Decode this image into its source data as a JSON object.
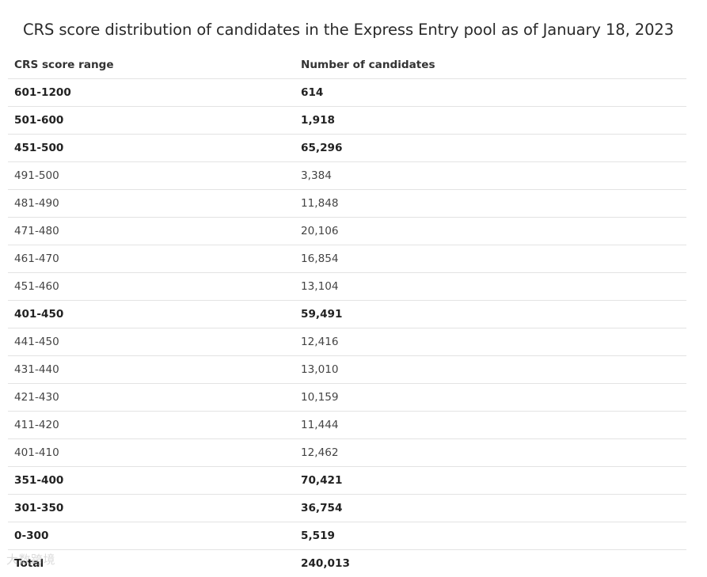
{
  "title": "CRS score distribution of candidates in the Express Entry pool as of January 18, 2023",
  "table": {
    "headers": [
      "CRS score range",
      "Number of candidates"
    ],
    "rows": [
      {
        "range": "601-1200",
        "count": "614",
        "bold": true
      },
      {
        "range": "501-600",
        "count": "1,918",
        "bold": true
      },
      {
        "range": "451-500",
        "count": "65,296",
        "bold": true
      },
      {
        "range": "491-500",
        "count": "3,384",
        "bold": false
      },
      {
        "range": "481-490",
        "count": "11,848",
        "bold": false
      },
      {
        "range": "471-480",
        "count": "20,106",
        "bold": false
      },
      {
        "range": "461-470",
        "count": "16,854",
        "bold": false
      },
      {
        "range": "451-460",
        "count": "13,104",
        "bold": false
      },
      {
        "range": "401-450",
        "count": "59,491",
        "bold": true
      },
      {
        "range": "441-450",
        "count": "12,416",
        "bold": false
      },
      {
        "range": "431-440",
        "count": "13,010",
        "bold": false
      },
      {
        "range": "421-430",
        "count": "10,159",
        "bold": false
      },
      {
        "range": "411-420",
        "count": "11,444",
        "bold": false
      },
      {
        "range": "401-410",
        "count": "12,462",
        "bold": false
      },
      {
        "range": "351-400",
        "count": "70,421",
        "bold": true
      },
      {
        "range": "301-350",
        "count": "36,754",
        "bold": true
      },
      {
        "range": "0-300",
        "count": "5,519",
        "bold": true
      },
      {
        "range": "Total",
        "count": "240,013",
        "bold": true
      }
    ]
  },
  "watermark": "大数跨境"
}
